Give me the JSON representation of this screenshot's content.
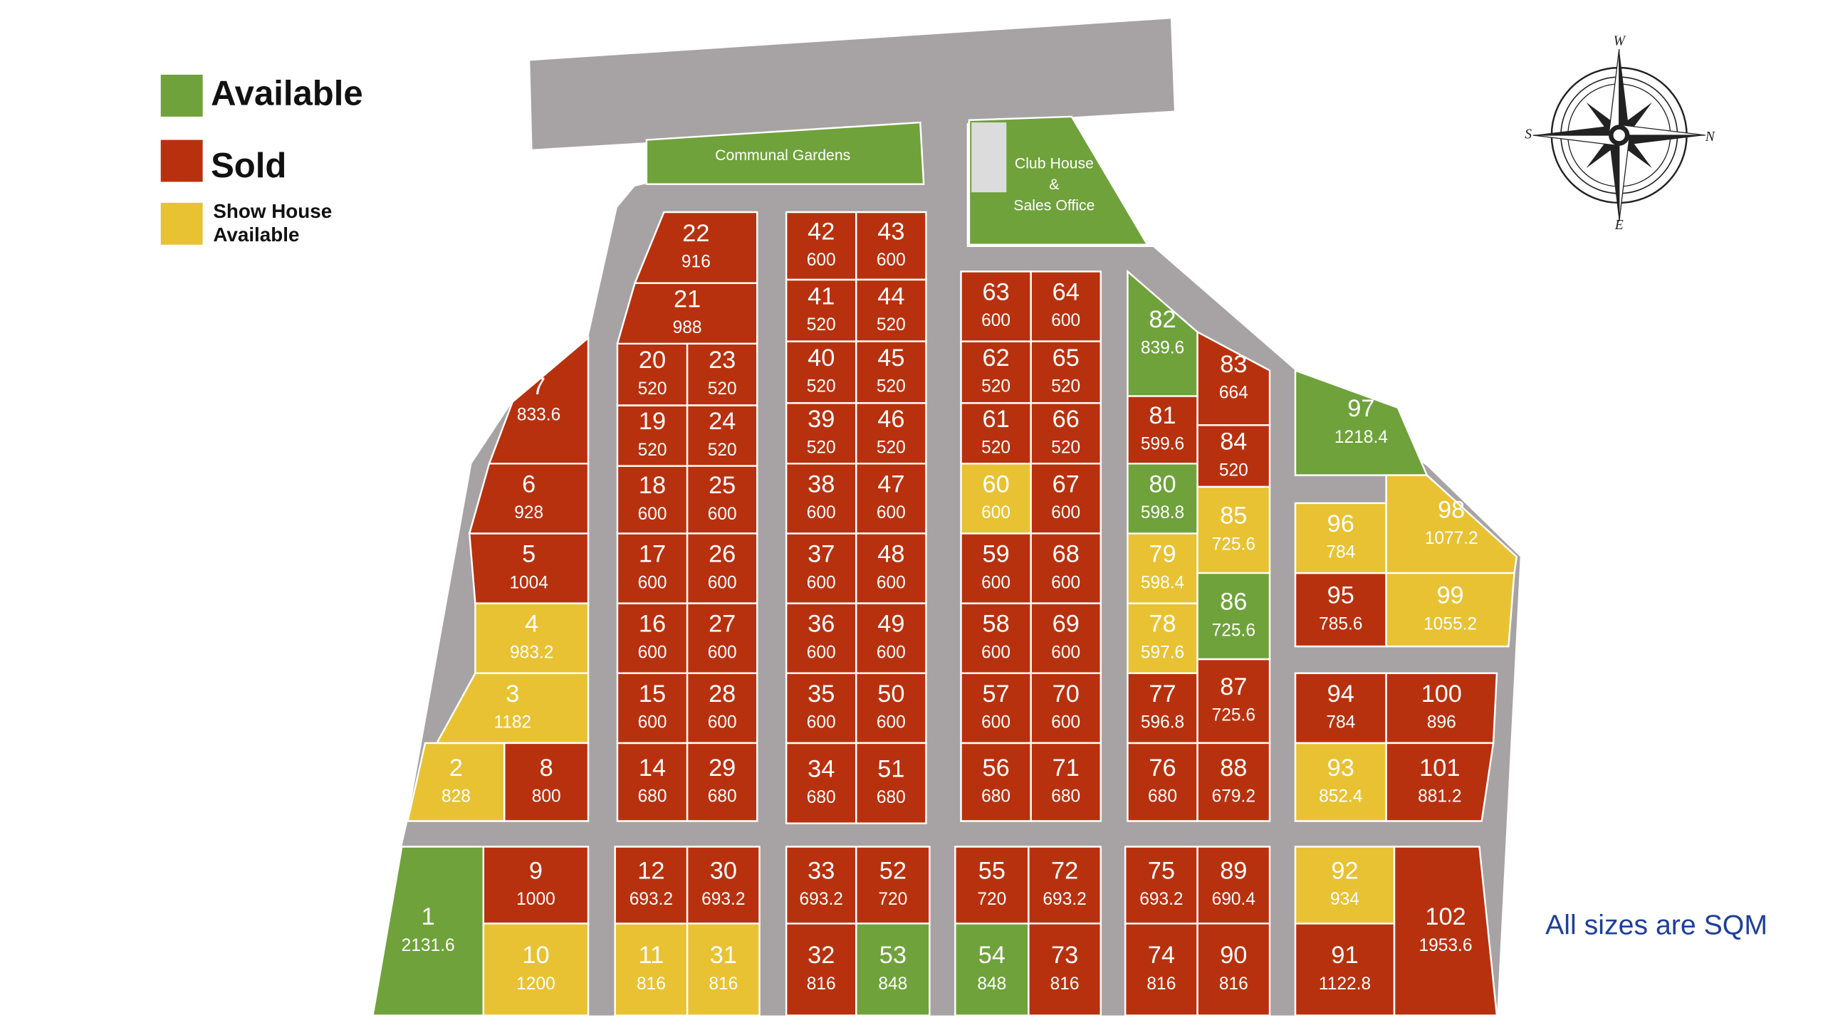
{
  "legend": [
    {
      "label": "Available",
      "color": "#6fa23b"
    },
    {
      "label": "Sold",
      "color": "#b8310e"
    },
    {
      "label": "Show House Available",
      "color": "#e8c233"
    }
  ],
  "areas": {
    "communal_gardens": "Communal Gardens",
    "club_house": [
      "Club House",
      "&",
      "Sales Office"
    ]
  },
  "compass": {
    "top": "W",
    "right": "N",
    "left": "S",
    "bottom": "E"
  },
  "note": "All sizes are SQM",
  "plots": [
    {
      "number": "1",
      "size": "2131.6",
      "status": "Available"
    },
    {
      "number": "2",
      "size": "828",
      "status": "Show House Available"
    },
    {
      "number": "3",
      "size": "1182",
      "status": "Show House Available"
    },
    {
      "number": "4",
      "size": "983.2",
      "status": "Show House Available"
    },
    {
      "number": "5",
      "size": "1004",
      "status": "Sold"
    },
    {
      "number": "6",
      "size": "928",
      "status": "Sold"
    },
    {
      "number": "7",
      "size": "833.6",
      "status": "Sold"
    },
    {
      "number": "8",
      "size": "800",
      "status": "Sold"
    },
    {
      "number": "9",
      "size": "1000",
      "status": "Sold"
    },
    {
      "number": "10",
      "size": "1200",
      "status": "Show House Available"
    },
    {
      "number": "11",
      "size": "816",
      "status": "Show House Available"
    },
    {
      "number": "12",
      "size": "693.2",
      "status": "Sold"
    },
    {
      "number": "14",
      "size": "680",
      "status": "Sold"
    },
    {
      "number": "15",
      "size": "600",
      "status": "Sold"
    },
    {
      "number": "16",
      "size": "600",
      "status": "Sold"
    },
    {
      "number": "17",
      "size": "600",
      "status": "Sold"
    },
    {
      "number": "18",
      "size": "600",
      "status": "Sold"
    },
    {
      "number": "19",
      "size": "520",
      "status": "Sold"
    },
    {
      "number": "20",
      "size": "520",
      "status": "Sold"
    },
    {
      "number": "21",
      "size": "988",
      "status": "Sold"
    },
    {
      "number": "22",
      "size": "916",
      "status": "Sold"
    },
    {
      "number": "23",
      "size": "520",
      "status": "Sold"
    },
    {
      "number": "24",
      "size": "520",
      "status": "Sold"
    },
    {
      "number": "25",
      "size": "600",
      "status": "Sold"
    },
    {
      "number": "26",
      "size": "600",
      "status": "Sold"
    },
    {
      "number": "27",
      "size": "600",
      "status": "Sold"
    },
    {
      "number": "28",
      "size": "600",
      "status": "Sold"
    },
    {
      "number": "29",
      "size": "680",
      "status": "Sold"
    },
    {
      "number": "30",
      "size": "693.2",
      "status": "Sold"
    },
    {
      "number": "31",
      "size": "816",
      "status": "Show House Available"
    },
    {
      "number": "32",
      "size": "816",
      "status": "Sold"
    },
    {
      "number": "33",
      "size": "693.2",
      "status": "Sold"
    },
    {
      "number": "34",
      "size": "680",
      "status": "Sold"
    },
    {
      "number": "35",
      "size": "600",
      "status": "Sold"
    },
    {
      "number": "36",
      "size": "600",
      "status": "Sold"
    },
    {
      "number": "37",
      "size": "600",
      "status": "Sold"
    },
    {
      "number": "38",
      "size": "600",
      "status": "Sold"
    },
    {
      "number": "39",
      "size": "520",
      "status": "Sold"
    },
    {
      "number": "40",
      "size": "520",
      "status": "Sold"
    },
    {
      "number": "41",
      "size": "520",
      "status": "Sold"
    },
    {
      "number": "42",
      "size": "600",
      "status": "Sold"
    },
    {
      "number": "43",
      "size": "600",
      "status": "Sold"
    },
    {
      "number": "44",
      "size": "520",
      "status": "Sold"
    },
    {
      "number": "45",
      "size": "520",
      "status": "Sold"
    },
    {
      "number": "46",
      "size": "520",
      "status": "Sold"
    },
    {
      "number": "47",
      "size": "600",
      "status": "Sold"
    },
    {
      "number": "48",
      "size": "600",
      "status": "Sold"
    },
    {
      "number": "49",
      "size": "600",
      "status": "Sold"
    },
    {
      "number": "50",
      "size": "600",
      "status": "Sold"
    },
    {
      "number": "51",
      "size": "680",
      "status": "Sold"
    },
    {
      "number": "52",
      "size": "720",
      "status": "Sold"
    },
    {
      "number": "53",
      "size": "848",
      "status": "Available"
    },
    {
      "number": "54",
      "size": "848",
      "status": "Available"
    },
    {
      "number": "55",
      "size": "720",
      "status": "Sold"
    },
    {
      "number": "56",
      "size": "680",
      "status": "Sold"
    },
    {
      "number": "57",
      "size": "600",
      "status": "Sold"
    },
    {
      "number": "58",
      "size": "600",
      "status": "Sold"
    },
    {
      "number": "59",
      "size": "600",
      "status": "Sold"
    },
    {
      "number": "60",
      "size": "600",
      "status": "Show House Available"
    },
    {
      "number": "61",
      "size": "520",
      "status": "Sold"
    },
    {
      "number": "62",
      "size": "520",
      "status": "Sold"
    },
    {
      "number": "63",
      "size": "600",
      "status": "Sold"
    },
    {
      "number": "64",
      "size": "600",
      "status": "Sold"
    },
    {
      "number": "65",
      "size": "520",
      "status": "Sold"
    },
    {
      "number": "66",
      "size": "520",
      "status": "Sold"
    },
    {
      "number": "67",
      "size": "600",
      "status": "Sold"
    },
    {
      "number": "68",
      "size": "600",
      "status": "Sold"
    },
    {
      "number": "69",
      "size": "600",
      "status": "Sold"
    },
    {
      "number": "70",
      "size": "600",
      "status": "Sold"
    },
    {
      "number": "71",
      "size": "680",
      "status": "Sold"
    },
    {
      "number": "72",
      "size": "693.2",
      "status": "Sold"
    },
    {
      "number": "73",
      "size": "816",
      "status": "Sold"
    },
    {
      "number": "74",
      "size": "816",
      "status": "Sold"
    },
    {
      "number": "75",
      "size": "693.2",
      "status": "Sold"
    },
    {
      "number": "76",
      "size": "680",
      "status": "Sold"
    },
    {
      "number": "77",
      "size": "596.8",
      "status": "Sold"
    },
    {
      "number": "78",
      "size": "597.6",
      "status": "Show House Available"
    },
    {
      "number": "79",
      "size": "598.4",
      "status": "Show House Available"
    },
    {
      "number": "80",
      "size": "598.8",
      "status": "Available"
    },
    {
      "number": "81",
      "size": "599.6",
      "status": "Sold"
    },
    {
      "number": "82",
      "size": "839.6",
      "status": "Available"
    },
    {
      "number": "83",
      "size": "664",
      "status": "Sold"
    },
    {
      "number": "84",
      "size": "520",
      "status": "Sold"
    },
    {
      "number": "85",
      "size": "725.6",
      "status": "Show House Available"
    },
    {
      "number": "86",
      "size": "725.6",
      "status": "Available"
    },
    {
      "number": "87",
      "size": "725.6",
      "status": "Sold"
    },
    {
      "number": "88",
      "size": "679.2",
      "status": "Sold"
    },
    {
      "number": "89",
      "size": "690.4",
      "status": "Sold"
    },
    {
      "number": "90",
      "size": "816",
      "status": "Sold"
    },
    {
      "number": "91",
      "size": "1122.8",
      "status": "Sold"
    },
    {
      "number": "92",
      "size": "934",
      "status": "Show House Available"
    },
    {
      "number": "93",
      "size": "852.4",
      "status": "Show House Available"
    },
    {
      "number": "94",
      "size": "784",
      "status": "Sold"
    },
    {
      "number": "95",
      "size": "785.6",
      "status": "Sold"
    },
    {
      "number": "96",
      "size": "784",
      "status": "Show House Available"
    },
    {
      "number": "97",
      "size": "1218.4",
      "status": "Available"
    },
    {
      "number": "98",
      "size": "1077.2",
      "status": "Show House Available"
    },
    {
      "number": "99",
      "size": "1055.2",
      "status": "Show House Available"
    },
    {
      "number": "100",
      "size": "896",
      "status": "Sold"
    },
    {
      "number": "101",
      "size": "881.2",
      "status": "Sold"
    },
    {
      "number": "102",
      "size": "1953.6",
      "status": "Sold"
    }
  ]
}
